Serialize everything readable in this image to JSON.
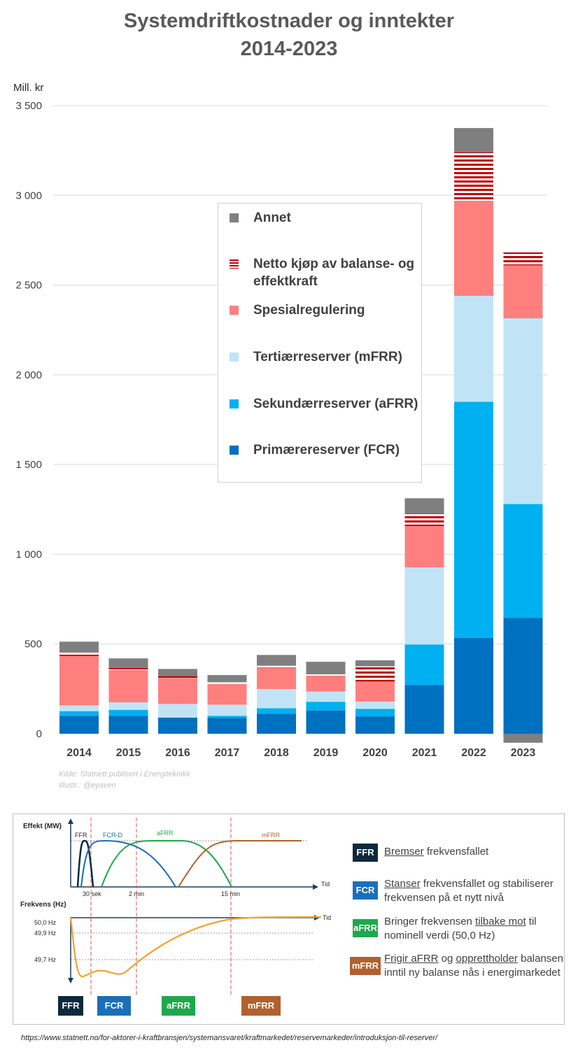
{
  "title_line1": "Systemdriftkostnader og inntekter",
  "title_line2": "2014-2023",
  "chart_data": {
    "type": "bar",
    "stacked": true,
    "ylabel": "Mill. kr",
    "ylim": [
      0,
      3500
    ],
    "yticks": [
      0,
      500,
      1000,
      1500,
      2000,
      2500,
      3000,
      3500
    ],
    "ytick_labels": [
      "0",
      "500",
      "1 000",
      "1 500",
      "2 000",
      "2 500",
      "3 000",
      "3 500"
    ],
    "categories": [
      "2014",
      "2015",
      "2016",
      "2017",
      "2018",
      "2019",
      "2020",
      "2021",
      "2022",
      "2023"
    ],
    "grid": true,
    "legend_position": "center",
    "series": [
      {
        "name": "Primærereserver (FCR)",
        "color": "#0070c0",
        "pattern": "solid",
        "values": [
          100,
          100,
          90,
          88,
          112,
          130,
          97,
          272,
          535,
          645
        ]
      },
      {
        "name": "Sekundærreserver (aFRR)",
        "color": "#00b0f0",
        "pattern": "solid",
        "values": [
          26,
          33,
          0,
          12,
          30,
          48,
          42,
          225,
          1315,
          635
        ]
      },
      {
        "name": "Tertiærreserver (mFRR)",
        "color": "#c0e4f6",
        "pattern": "solid",
        "values": [
          32,
          42,
          76,
          62,
          107,
          57,
          40,
          430,
          590,
          1035
        ]
      },
      {
        "name": "Spesialregulering",
        "color": "#ff7f7f",
        "pattern": "solid",
        "values": [
          275,
          180,
          145,
          115,
          120,
          88,
          112,
          230,
          530,
          295
        ]
      },
      {
        "name": "Netto kjøp av balanse- og effektkraft",
        "color": "#c00000",
        "pattern": "stripes",
        "values": [
          20,
          12,
          10,
          10,
          10,
          8,
          85,
          70,
          270,
          72
        ]
      },
      {
        "name": "Annet",
        "color": "#7f7f7f",
        "pattern": "solid",
        "values": [
          60,
          53,
          40,
          40,
          60,
          70,
          33,
          85,
          135,
          -50
        ]
      }
    ]
  },
  "legend": {
    "annet": "Annet",
    "netto": "Netto kjøp av balanse- og effektkraft",
    "spesial": "Spesialregulering",
    "mfrr": "Tertiærreserver (mFRR)",
    "afrr": "Sekundærreserver (aFRR)",
    "fcr": "Primærereserver (FCR)"
  },
  "credit_source": "Kilde: Statnett publisert i Energiteknikk",
  "credit_illustr": "Illustr.: @eyaven",
  "diagram": {
    "effekt_label": "Effekt (MW)",
    "frekvens_label": "Frekvens (Hz)",
    "tid_label": "Tid",
    "curve_labels": [
      "FFR",
      "FCR-D",
      "aFRR",
      "mFRR"
    ],
    "time_labels": [
      "30 sek",
      "2 min",
      "15 min"
    ],
    "freq_labels": [
      "50,0 Hz",
      "49,9 Hz",
      "49,7 Hz"
    ],
    "colors": {
      "ffr": "#0b2a3c",
      "fcr": "#1a6fba",
      "afrr": "#1ea84b",
      "mfrr": "#b0612d",
      "freq": "#f4a22d"
    },
    "items": [
      {
        "tag": "FFR",
        "pre": "",
        "u1": "Bremser",
        "mid": " frekvensfallet",
        "u2": "",
        "post": ""
      },
      {
        "tag": "FCR",
        "pre": "",
        "u1": "Stanser",
        "mid": " frekvensfallet og stabiliserer frekvensen på et nytt nivå",
        "u2": "",
        "post": ""
      },
      {
        "tag": "aFRR",
        "pre": "Bringer frekvensen ",
        "u1": "tilbake mot",
        "mid": " til nominell verdi (50,0 Hz)",
        "u2": "",
        "post": ""
      },
      {
        "tag": "mFRR",
        "pre": "",
        "u1": "Frigir aFRR",
        "mid": " og ",
        "u2": "opprettholder",
        "post": " balansen inntil ny balanse nås i energimarkedet"
      }
    ],
    "bottom_tags": [
      "FFR",
      "FCR",
      "aFRR",
      "mFRR"
    ]
  },
  "url": "https://www.statnett.no/for-aktorer-i-kraftbransjen/systemansvaret/kraftmarkedet/reservemarkeder/introduksjon-til-reserver/"
}
